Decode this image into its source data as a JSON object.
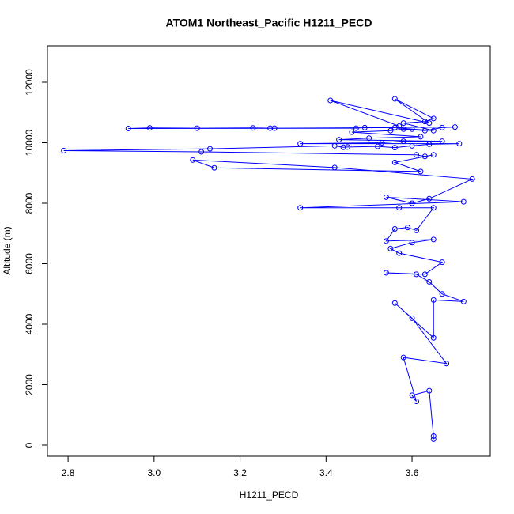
{
  "chart_data": {
    "type": "line",
    "title": "ATOM1 Northeast_Pacific H1211_PECD",
    "xlabel": "H1211_PECD",
    "ylabel": "Altitude (m)",
    "color": "#0000ff",
    "markers": true,
    "xlim": [
      2.752,
      3.782
    ],
    "ylim": [
      -366,
      13203
    ],
    "xticks": [
      2.8,
      {
        "value": 3,
        "label": "3.0"
      },
      3.2,
      3.4,
      3.6
    ],
    "yticks": [
      0,
      2000,
      4000,
      6000,
      8000,
      10000,
      12000
    ],
    "x": [
      3.65,
      3.65,
      3.64,
      3.6,
      3.61,
      3.58,
      3.68,
      3.6,
      3.56,
      3.65,
      3.65,
      3.72,
      3.67,
      3.64,
      3.61,
      3.54,
      3.63,
      3.67,
      3.57,
      3.55,
      3.6,
      3.65,
      3.54,
      3.56,
      3.59,
      3.61,
      3.65,
      3.57,
      3.34,
      3.72,
      3.54,
      3.6,
      3.64,
      3.74,
      3.42,
      3.09,
      3.14,
      3.62,
      3.56,
      3.65,
      3.63,
      3.61,
      3.11,
      2.79,
      3.13,
      3.42,
      3.44,
      3.45,
      3.52,
      3.56,
      3.6,
      3.64,
      3.71,
      3.34,
      3.53,
      3.58,
      3.67,
      3.43,
      3.5,
      3.62,
      3.46,
      3.55,
      3.58,
      3.63,
      3.67,
      3.7,
      3.49,
      3.47,
      2.94,
      2.99,
      3.1,
      3.23,
      3.27,
      3.28,
      3.56,
      3.6,
      3.65,
      3.58,
      3.63,
      3.65,
      3.56,
      3.64,
      3.41,
      3.57
    ],
    "values": [
      200,
      300,
      1800,
      1650,
      1450,
      2900,
      2700,
      4200,
      4700,
      3550,
      4800,
      4750,
      5000,
      5400,
      5650,
      5700,
      5650,
      6050,
      6350,
      6500,
      6700,
      6800,
      6750,
      7150,
      7200,
      7100,
      7850,
      7850,
      7850,
      8050,
      8200,
      8000,
      8150,
      8800,
      9180,
      9430,
      9170,
      9050,
      9350,
      9600,
      9550,
      9600,
      9700,
      9740,
      9800,
      9900,
      9850,
      9860,
      9880,
      9840,
      9900,
      9950,
      9970,
      9970,
      10000,
      10050,
      10050,
      10100,
      10150,
      10200,
      10350,
      10400,
      10450,
      10400,
      10500,
      10520,
      10500,
      10480,
      10470,
      10490,
      10480,
      10490,
      10480,
      10480,
      10500,
      10450,
      10400,
      10650,
      10700,
      10800,
      11450,
      10650,
      11400,
      10550
    ]
  }
}
